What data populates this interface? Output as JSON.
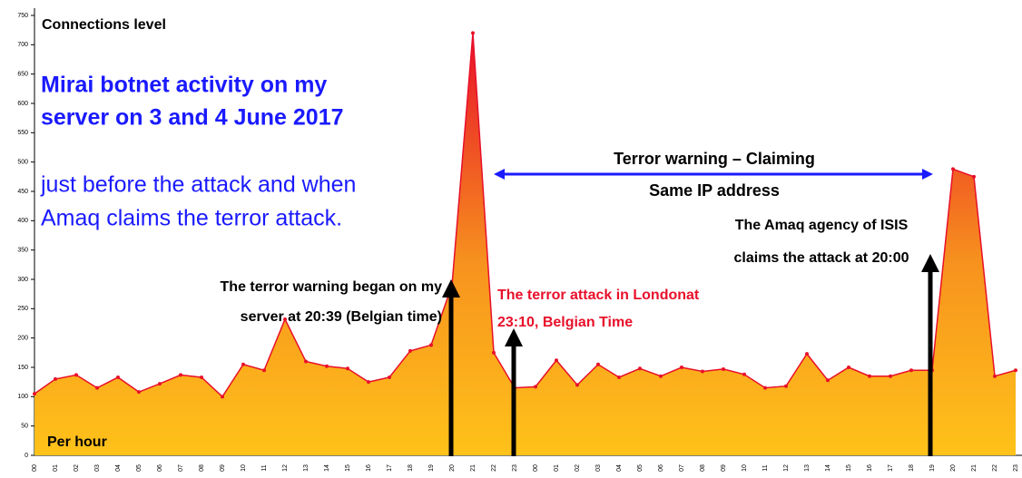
{
  "chart_data": {
    "type": "area",
    "title": "Connections level",
    "x_label": "Per hour",
    "categories": [
      "00",
      "01",
      "02",
      "03",
      "04",
      "05",
      "06",
      "07",
      "08",
      "09",
      "10",
      "11",
      "12",
      "13",
      "14",
      "15",
      "16",
      "17",
      "18",
      "19",
      "20",
      "21",
      "22",
      "23",
      "00",
      "01",
      "02",
      "03",
      "04",
      "05",
      "06",
      "07",
      "08",
      "09",
      "10",
      "11",
      "12",
      "13",
      "14",
      "15",
      "16",
      "17",
      "18",
      "19",
      "20",
      "21",
      "22",
      "23"
    ],
    "values": [
      105,
      130,
      137,
      115,
      133,
      108,
      122,
      137,
      133,
      100,
      155,
      145,
      232,
      160,
      152,
      148,
      125,
      133,
      178,
      188,
      290,
      720,
      175,
      115,
      117,
      162,
      120,
      155,
      133,
      148,
      135,
      150,
      143,
      147,
      138,
      115,
      118,
      173,
      128,
      150,
      135,
      135,
      145,
      145,
      488,
      475,
      135,
      145
    ],
    "color": "#e8102a",
    "ylim": [
      0,
      750
    ],
    "yticks": [
      0,
      50,
      100,
      150,
      200,
      250,
      300,
      350,
      400,
      450,
      500,
      550,
      600,
      650,
      700,
      750
    ],
    "grid": false,
    "annotations": [
      [
        "Mirai botnet activity on my",
        "server on 3 and 4 June 2017"
      ],
      [
        "just before the attack and when",
        "Amaq claims the terror attack."
      ],
      [
        "Terror warning – Claiming",
        "Same IP address"
      ],
      [
        "The Amaq agency  of ISIS",
        "claims the attack at 20:00"
      ],
      [
        "The terror warning began on my",
        "server  at 20:39 (Belgian time)"
      ],
      [
        "The terror attack in Londonat",
        "23:10, Belgian Time"
      ]
    ]
  }
}
